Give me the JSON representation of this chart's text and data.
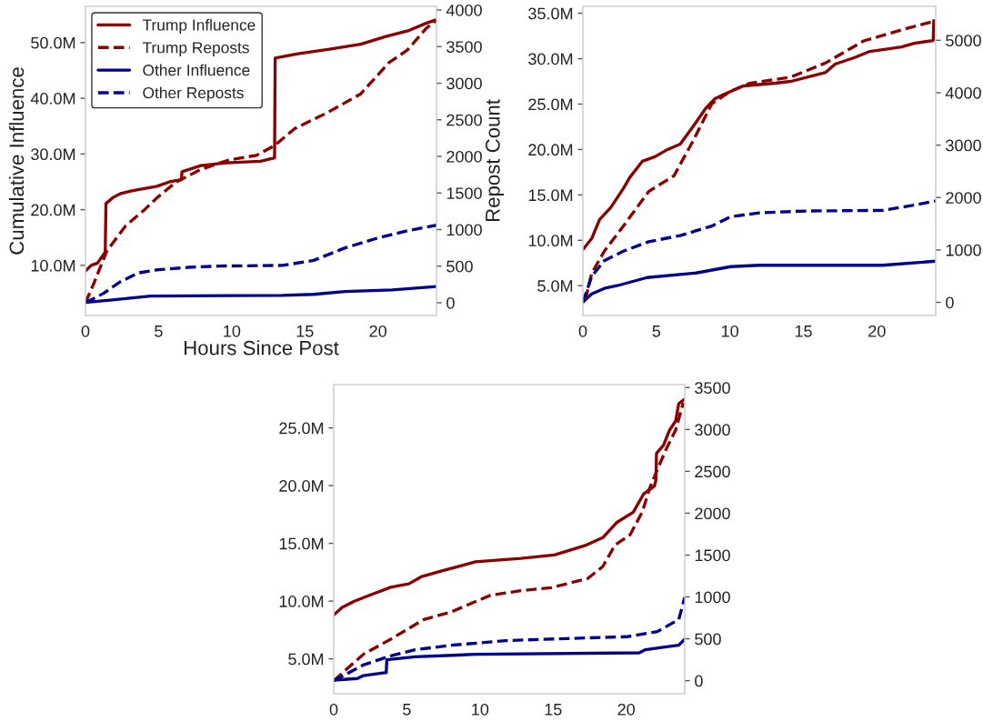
{
  "chart_data": [
    {
      "type": "line",
      "xlabel": "Hours Since Post",
      "ylabel": "Cumulative Influence",
      "y2label": "Repost Count",
      "legend": "top left",
      "xlim": [
        0,
        24
      ],
      "xticks": [
        0,
        5,
        10,
        15,
        20
      ],
      "ylim": [
        1.0,
        56.5
      ],
      "yticks": [
        {
          "value": 10,
          "label": "10.0M"
        },
        {
          "value": 20,
          "label": "20.0M"
        },
        {
          "value": 30,
          "label": "30.0M"
        },
        {
          "value": 40,
          "label": "40.0M"
        },
        {
          "value": 50,
          "label": "50.0M"
        }
      ],
      "y2lim": [
        -174,
        4050
      ],
      "y2ticks": [
        0,
        500,
        1000,
        1500,
        2000,
        2500,
        3000,
        3500,
        4000
      ],
      "series": [
        {
          "name": "Trump Influence",
          "color": "#8b0000",
          "line_style": "solid",
          "x": [
            0,
            0.39,
            0.82,
            1.35,
            1.4,
            1.89,
            2.42,
            3.17,
            4.89,
            5.75,
            6.56,
            6.6,
            7.89,
            9.6,
            11.96,
            12.93,
            12.97,
            14.53,
            16.68,
            18.82,
            20.54,
            22.04,
            23.32,
            24.0
          ],
          "values": [
            9.0,
            10.0,
            10.4,
            12.4,
            21.1,
            22.2,
            22.9,
            23.4,
            24.2,
            25.0,
            25.4,
            26.8,
            27.9,
            28.4,
            28.7,
            29.3,
            47.2,
            48.0,
            48.8,
            49.7,
            51.1,
            52.1,
            53.5,
            54.1
          ]
        },
        {
          "name": "Trump Reposts",
          "color": "#8b0000",
          "line_style": "dashed",
          "axis": "y2",
          "x": [
            0,
            0.6,
            1.46,
            2.74,
            4.0,
            4.9,
            6.2,
            7.9,
            9.8,
            11.7,
            12.9,
            14.3,
            16.5,
            18.8,
            20.75,
            22.0,
            23.3,
            24.0
          ],
          "values": [
            0,
            279,
            707,
            1050,
            1265,
            1436,
            1650,
            1822,
            1951,
            2015,
            2144,
            2379,
            2594,
            2851,
            3280,
            3451,
            3751,
            3858
          ]
        },
        {
          "name": "Other Influence",
          "color": "#00008b",
          "line_style": "solid",
          "x": [
            0,
            1.67,
            4.46,
            13.46,
            15.6,
            17.75,
            20.96,
            24.0
          ],
          "values": [
            3.35,
            3.75,
            4.5,
            4.6,
            4.8,
            5.3,
            5.6,
            6.2
          ]
        },
        {
          "name": "Other Reposts",
          "color": "#00008b",
          "line_style": "dashed",
          "axis": "y2",
          "x": [
            0,
            1.24,
            2.31,
            3.6,
            4.89,
            7.03,
            9.18,
            13.46,
            15.6,
            17.75,
            19.89,
            22.04,
            24.0
          ],
          "values": [
            0,
            129,
            279,
            407,
            450,
            484,
            502,
            510,
            579,
            750,
            879,
            986,
            1059
          ]
        }
      ]
    },
    {
      "type": "line",
      "legend": false,
      "xlim": [
        0,
        24
      ],
      "xticks": [
        0,
        5,
        10,
        15,
        20
      ],
      "ylim": [
        1.72,
        35.76
      ],
      "yticks": [
        {
          "value": 5,
          "label": "5.0M"
        },
        {
          "value": 10,
          "label": "10.0M"
        },
        {
          "value": 15,
          "label": "15.0M"
        },
        {
          "value": 20,
          "label": "20.0M"
        },
        {
          "value": 25,
          "label": "25.0M"
        },
        {
          "value": 30,
          "label": "30.0M"
        },
        {
          "value": 35,
          "label": "35.0M"
        }
      ],
      "y2lim": [
        -251,
        5647
      ],
      "y2ticks": [
        0,
        1000,
        2000,
        3000,
        4000,
        5000
      ],
      "series": [
        {
          "color": "#8b0000",
          "line_style": "solid",
          "x": [
            0,
            0.6,
            1.14,
            1.89,
            2.75,
            3.18,
            4.04,
            4.9,
            5.76,
            6.62,
            7.48,
            8.34,
            8.99,
            9.63,
            10.92,
            13.07,
            14.15,
            16.52,
            17.16,
            18.45,
            19.52,
            21.68,
            22.54,
            23.83,
            23.87
          ],
          "values": [
            8.97,
            10.2,
            12.3,
            13.6,
            15.7,
            16.9,
            18.7,
            19.2,
            20.0,
            20.6,
            22.5,
            24.5,
            25.6,
            26.1,
            27.0,
            27.3,
            27.5,
            28.5,
            29.4,
            30.1,
            30.8,
            31.3,
            31.7,
            32.0,
            34.2
          ]
        },
        {
          "color": "#8b0000",
          "line_style": "dashed",
          "axis": "y2",
          "x": [
            0.17,
            0.6,
            1.46,
            2.75,
            4.47,
            6.19,
            7.48,
            8.77,
            10.06,
            11.35,
            14.15,
            16.52,
            19.1,
            21.68,
            23.83
          ],
          "values": [
            48,
            557,
            976,
            1455,
            2114,
            2413,
            3072,
            3790,
            4030,
            4180,
            4299,
            4569,
            4988,
            5198,
            5359
          ]
        },
        {
          "color": "#00008b",
          "line_style": "solid",
          "x": [
            0,
            0.6,
            1.46,
            2.32,
            4.37,
            7.7,
            10.06,
            12.0,
            20.39,
            24.0
          ],
          "values": [
            3.2,
            4.1,
            4.7,
            5.0,
            5.9,
            6.4,
            7.1,
            7.25,
            7.25,
            7.7
          ]
        },
        {
          "color": "#00008b",
          "line_style": "dashed",
          "axis": "y2",
          "x": [
            0,
            0.6,
            1.46,
            2.75,
            4.47,
            6.62,
            8.77,
            10.06,
            12.0,
            15.2,
            20.39,
            22.32,
            24.0
          ],
          "values": [
            0,
            497,
            796,
            976,
            1156,
            1275,
            1455,
            1635,
            1707,
            1743,
            1754,
            1844,
            1934
          ]
        }
      ]
    },
    {
      "type": "line",
      "legend": false,
      "xlim": [
        0,
        24
      ],
      "xticks": [
        0,
        5,
        10,
        15,
        20
      ],
      "ylim": [
        1.98,
        28.75
      ],
      "yticks": [
        {
          "value": 5,
          "label": "5.0M"
        },
        {
          "value": 10,
          "label": "10.0M"
        },
        {
          "value": 15,
          "label": "15.0M"
        },
        {
          "value": 20,
          "label": "20.0M"
        },
        {
          "value": 25,
          "label": "25.0M"
        }
      ],
      "y2lim": [
        -156,
        3536
      ],
      "y2ticks": [
        0,
        500,
        1000,
        1500,
        2000,
        2500,
        3000,
        3500
      ],
      "series": [
        {
          "color": "#8b0000",
          "line_style": "solid",
          "x": [
            0,
            0.58,
            1.41,
            2.24,
            3.9,
            5.14,
            5.97,
            7.62,
            9.7,
            12.8,
            15.09,
            17.16,
            18.4,
            19.34,
            20.48,
            21.2,
            21.93,
            22.03,
            22.07,
            22.55,
            22.96,
            23.38,
            23.59,
            24.0
          ],
          "values": [
            8.8,
            9.46,
            9.99,
            10.4,
            11.2,
            11.5,
            12.1,
            12.7,
            13.4,
            13.7,
            14.0,
            14.8,
            15.5,
            16.8,
            17.7,
            19.3,
            19.96,
            20.5,
            22.8,
            23.5,
            24.8,
            25.6,
            27.1,
            27.5
          ]
        },
        {
          "color": "#8b0000",
          "line_style": "dashed",
          "axis": "y2",
          "x": [
            0,
            2.03,
            3.9,
            6.17,
            8.04,
            10.73,
            12.8,
            14.88,
            17.37,
            18.4,
            19.23,
            20.27,
            21.1,
            21.62,
            22.13,
            22.76,
            23.38,
            23.9
          ],
          "values": [
            0,
            315,
            496,
            731,
            822,
            1021,
            1075,
            1111,
            1220,
            1364,
            1618,
            1744,
            2016,
            2305,
            2523,
            2776,
            2993,
            3319
          ]
        },
        {
          "color": "#00008b",
          "line_style": "solid",
          "x": [
            0,
            1.62,
            2.03,
            3.49,
            3.59,
            3.63,
            5.56,
            9.7,
            20.89,
            21.31,
            22.76,
            23.59,
            24.0
          ],
          "values": [
            3.16,
            3.3,
            3.55,
            3.8,
            3.8,
            4.92,
            5.18,
            5.39,
            5.52,
            5.79,
            6.05,
            6.18,
            6.7
          ]
        },
        {
          "color": "#00008b",
          "line_style": "dashed",
          "axis": "y2",
          "x": [
            0,
            2.03,
            3.9,
            5.56,
            8.04,
            11.77,
            15.92,
            20.06,
            22.13,
            23.59,
            23.9,
            24.0
          ],
          "values": [
            0,
            188,
            297,
            369,
            423,
            478,
            503,
            525,
            586,
            731,
            930,
            995
          ]
        }
      ]
    }
  ]
}
